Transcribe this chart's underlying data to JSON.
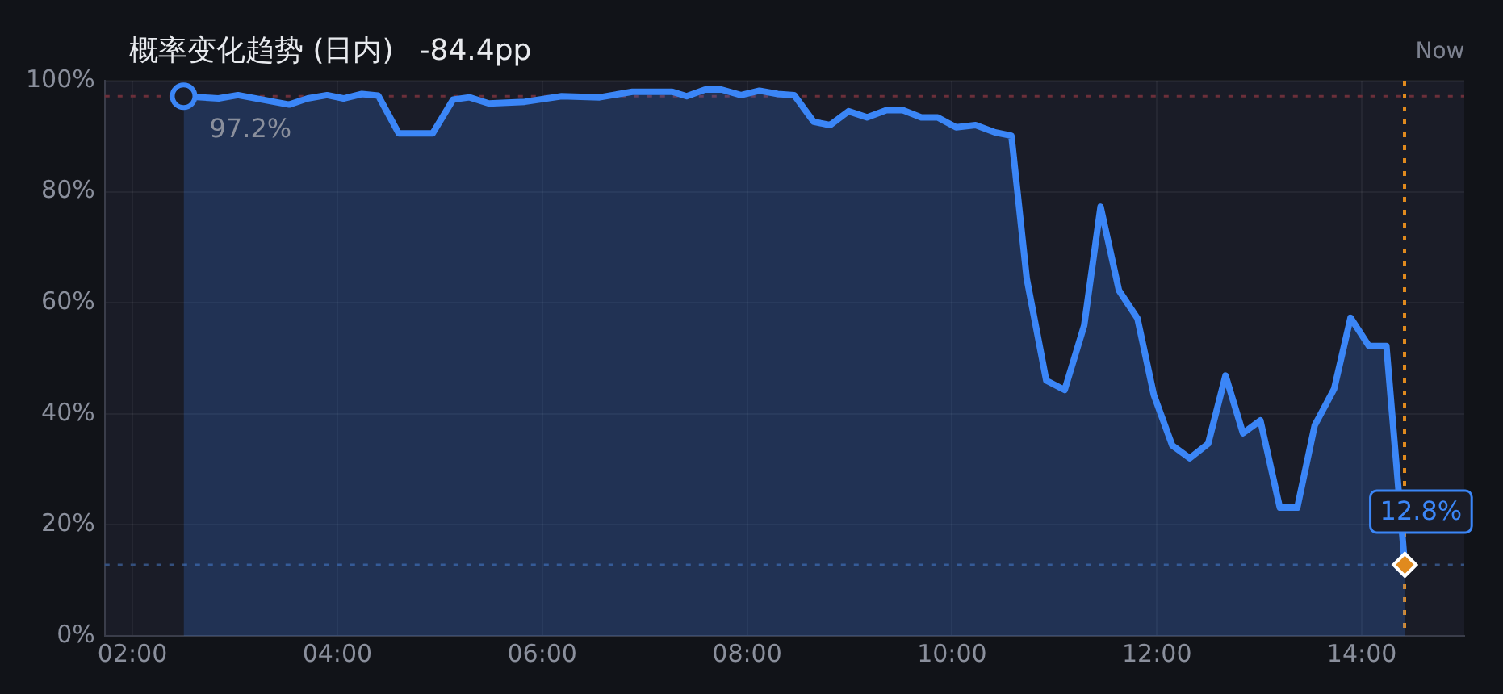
{
  "chart_data": {
    "type": "area",
    "title": "概率变化趋势 (日内)",
    "subtitle": "-84.4pp",
    "xlim": [
      1.73,
      15.0
    ],
    "xticks": [
      {
        "value": 2,
        "label": "02:00"
      },
      {
        "value": 4,
        "label": "04:00"
      },
      {
        "value": 6,
        "label": "06:00"
      },
      {
        "value": 8,
        "label": "08:00"
      },
      {
        "value": 10,
        "label": "10:00"
      },
      {
        "value": 12,
        "label": "12:00"
      },
      {
        "value": 14,
        "label": "14:00"
      }
    ],
    "ylim": [
      0,
      100
    ],
    "yticks": [
      {
        "value": 0,
        "label": "0%"
      },
      {
        "value": 20,
        "label": "20%"
      },
      {
        "value": 40,
        "label": "40%"
      },
      {
        "value": 60,
        "label": "60%"
      },
      {
        "value": 80,
        "label": "80%"
      },
      {
        "value": 100,
        "label": "100%"
      }
    ],
    "grid": true,
    "legend": false,
    "series": [
      {
        "color": "#3b86f7",
        "x": [
          2.5,
          2.84,
          3.03,
          3.53,
          3.71,
          3.9,
          4.06,
          4.24,
          4.4,
          4.6,
          4.93,
          5.13,
          5.29,
          5.48,
          5.83,
          6.19,
          6.56,
          6.88,
          7.27,
          7.41,
          7.59,
          7.75,
          7.94,
          8.12,
          8.3,
          8.46,
          8.65,
          8.81,
          8.99,
          9.17,
          9.36,
          9.52,
          9.7,
          9.86,
          10.04,
          10.23,
          10.42,
          10.58,
          10.73,
          10.92,
          11.1,
          11.29,
          11.45,
          11.63,
          11.81,
          11.97,
          12.15,
          12.32,
          12.5,
          12.67,
          12.84,
          13.01,
          13.2,
          13.37,
          13.54,
          13.73,
          13.89,
          14.07,
          14.24,
          14.42
        ],
        "values": [
          97.2,
          96.8,
          97.4,
          95.7,
          96.8,
          97.4,
          96.8,
          97.6,
          97.3,
          90.5,
          90.5,
          96.6,
          97.0,
          95.9,
          96.2,
          97.2,
          97.0,
          98.0,
          98.0,
          97.2,
          98.4,
          98.4,
          97.4,
          98.2,
          97.6,
          97.4,
          92.6,
          92.0,
          94.5,
          93.4,
          94.7,
          94.7,
          93.4,
          93.4,
          91.6,
          92.0,
          90.7,
          90.1,
          64.3,
          46.0,
          44.3,
          55.9,
          77.3,
          62.2,
          57.2,
          43.4,
          34.3,
          32.0,
          34.6,
          46.9,
          36.5,
          38.8,
          23.1,
          23.1,
          37.9,
          44.5,
          57.3,
          52.2,
          52.2,
          12.8
        ],
        "value_labels": [
          "97.2%",
          null,
          null,
          null,
          null,
          null,
          null,
          null,
          null,
          null,
          null,
          null,
          null,
          null,
          null,
          null,
          null,
          null,
          null,
          null,
          null,
          null,
          null,
          null,
          null,
          null,
          null,
          null,
          null,
          null,
          null,
          null,
          null,
          null,
          null,
          null,
          null,
          null,
          null,
          null,
          null,
          null,
          null,
          null,
          null,
          null,
          null,
          null,
          null,
          null,
          null,
          null,
          null,
          null,
          null,
          null,
          null,
          null,
          null,
          "12.8%"
        ]
      }
    ],
    "ref_lines": [
      {
        "axis": "y",
        "value": 97.2,
        "color": "#6b2f3a",
        "line_style": "dotted"
      },
      {
        "axis": "y",
        "value": 12.8,
        "color": "#34507e",
        "line_style": "dotted"
      },
      {
        "axis": "x",
        "value": 14.42,
        "label": "Now",
        "color": "#e08a1e",
        "line_style": "dotted"
      }
    ]
  }
}
